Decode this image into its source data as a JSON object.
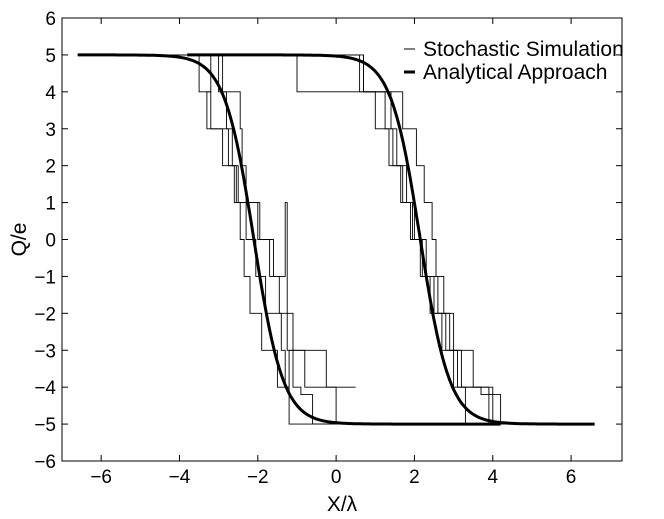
{
  "chart_data": {
    "type": "line",
    "title": "",
    "xlabel": "X/λ",
    "ylabel": "Q/e",
    "xlim": [
      -7,
      7.3
    ],
    "ylim": [
      -6,
      6
    ],
    "xticks": [
      -6,
      -4,
      -2,
      0,
      2,
      4,
      6
    ],
    "yticks": [
      -6,
      -5,
      -4,
      -3,
      -2,
      -1,
      0,
      1,
      2,
      3,
      4,
      5,
      6
    ],
    "xtick_labels": [
      "−6",
      "−4",
      "−2",
      "0",
      "2",
      "4",
      "6"
    ],
    "ytick_labels": [
      "−6",
      "−5",
      "−4",
      "−3",
      "−2",
      "−1",
      "0",
      "1",
      "2",
      "3",
      "4",
      "5",
      "6"
    ],
    "grid": false,
    "legend_position": "top-right",
    "legend": [
      "Stochastic Simulation",
      "Analytical Approach"
    ],
    "analytical_model": {
      "Q_max": 5,
      "switch_points": [
        -2.1,
        2.15
      ],
      "width": 0.75
    },
    "series": [
      {
        "name": "Stochastic Simulation",
        "style": "thin",
        "branches": [
          {
            "x": [
              -6.6,
              -3.5,
              -3.5,
              -3.2,
              -3.2,
              -2.65,
              -2.65,
              -2.55,
              -2.55,
              -2.45,
              -2.45,
              -2.35,
              -2.35,
              -2.2,
              -2.2,
              -1.9,
              -1.9,
              -1.5,
              -1.5,
              -1.2,
              -1.2,
              -1.1,
              -1.1,
              -0.9,
              -0.9,
              -0.6,
              -0.6,
              0.5
            ],
            "y": [
              5,
              5,
              4,
              4,
              3,
              3,
              2,
              2,
              1,
              1,
              0,
              0,
              -1,
              -1,
              -2,
              -2,
              -3,
              -3,
              -4,
              -4,
              -3,
              -3,
              -4,
              -4,
              -4.2,
              -4.2,
              -5,
              -5
            ]
          },
          {
            "x": [
              -6.6,
              -3.0,
              -3.0,
              -2.8,
              -2.8,
              -2.75,
              -2.75,
              -2.5,
              -2.5,
              -2.3,
              -2.3,
              -2.05,
              -2.05,
              -1.8,
              -1.8,
              -1.4,
              -1.4,
              -1.3,
              -1.3,
              -1.2,
              -1.2,
              -0.3,
              -0.3,
              0.5
            ],
            "y": [
              5,
              5,
              4,
              4,
              3,
              3,
              2,
              2,
              1,
              1,
              0,
              0,
              -1,
              -1,
              -2,
              -2,
              -3,
              -3,
              -4,
              -4,
              -5,
              -5,
              -5,
              -5
            ]
          },
          {
            "x": [
              -6.6,
              -2.9,
              -2.9,
              -2.45,
              -2.45,
              -2.4,
              -2.4,
              -2.3,
              -2.3,
              -1.95,
              -1.95,
              -1.6,
              -1.6,
              -1.3,
              -1.3,
              -1.25,
              -1.25,
              -1.1,
              -1.1,
              -0.25,
              -0.25,
              0.5
            ],
            "y": [
              5,
              5,
              4,
              4,
              3,
              3,
              2,
              2,
              1,
              1,
              0,
              0,
              -1,
              -1,
              1,
              1,
              -2,
              -2,
              -3,
              -3,
              -4,
              -4
            ]
          },
          {
            "x": [
              -3.2,
              -3.2,
              -3.3,
              -3.3,
              -2.9,
              -2.9,
              -2.6,
              -2.6,
              -2.0,
              -2.0,
              -1.7,
              -1.7,
              -1.45,
              -1.45,
              -1.25,
              -1.25,
              -0.8,
              -0.8,
              0.0,
              0.0,
              0.5
            ],
            "y": [
              5,
              4,
              4,
              3,
              3,
              2,
              2,
              1,
              1,
              0,
              0,
              -1,
              -1,
              -2,
              -2,
              -3,
              -3,
              -4,
              -4,
              -5,
              -5
            ]
          },
          {
            "x": [
              -0.3,
              0.7,
              0.7,
              1.4,
              1.4,
              1.55,
              1.55,
              1.8,
              1.8,
              2.0,
              2.0,
              2.3,
              2.3,
              2.6,
              2.6,
              2.9,
              2.9,
              3.1,
              3.1,
              3.3,
              3.3,
              6.6
            ],
            "y": [
              5,
              5,
              4,
              4,
              3,
              3,
              2,
              2,
              1,
              1,
              0,
              0,
              -1,
              -1,
              -2,
              -2,
              -3,
              -3,
              -4,
              -4,
              -5,
              -5
            ]
          },
          {
            "x": [
              -0.3,
              0.6,
              0.6,
              1.25,
              1.25,
              1.45,
              1.45,
              1.7,
              1.7,
              1.95,
              1.95,
              2.15,
              2.15,
              2.4,
              2.4,
              2.7,
              2.7,
              3.2,
              3.2,
              3.9,
              3.9,
              6.6
            ],
            "y": [
              5,
              5,
              4,
              4,
              3,
              3,
              2,
              2,
              1,
              1,
              0,
              0,
              -1,
              -1,
              -2,
              -2,
              -3,
              -3,
              -4,
              -4,
              -5,
              -5
            ]
          },
          {
            "x": [
              -0.3,
              -1.0,
              -1.0,
              1.0,
              1.0,
              1.35,
              1.35,
              1.65,
              1.65,
              1.9,
              1.9,
              2.2,
              2.2,
              2.5,
              2.5,
              2.8,
              2.8,
              3.0,
              3.0,
              3.7,
              3.7,
              4.2,
              4.2,
              6.6
            ],
            "y": [
              5,
              5,
              4,
              4,
              3,
              3,
              2,
              2,
              1,
              1,
              0,
              0,
              -1,
              -1,
              -2,
              -2,
              -3,
              -3,
              -4,
              -4,
              -4.2,
              -4.2,
              -5,
              -5
            ]
          },
          {
            "x": [
              0.7,
              0.7,
              1.7,
              1.7,
              2.05,
              2.05,
              2.25,
              2.25,
              2.45,
              2.45,
              2.55,
              2.55,
              2.75,
              2.75,
              3.0,
              3.0,
              3.5,
              3.5,
              4.0,
              4.0,
              6.6
            ],
            "y": [
              5,
              4,
              4,
              3,
              3,
              2,
              2,
              1,
              1,
              0,
              0,
              -1,
              -1,
              -2,
              -2,
              -3,
              -3,
              -4,
              -4,
              -5,
              -5
            ]
          }
        ]
      },
      {
        "name": "Analytical Approach",
        "style": "thick",
        "branches": [
          "down-sweep",
          "up-sweep"
        ]
      }
    ]
  }
}
